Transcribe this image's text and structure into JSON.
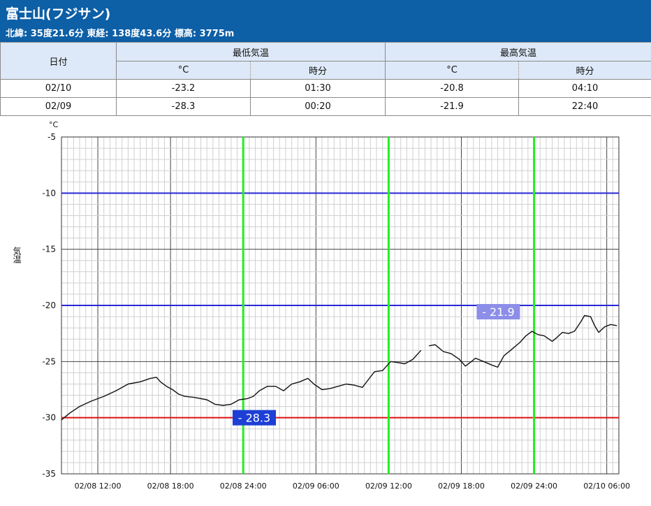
{
  "header": {
    "title": "富士山(フジサン)",
    "subtitle": "北緯: 35度21.6分 東経: 138度43.6分 標高: 3775m"
  },
  "table": {
    "date_header": "日付",
    "min_header": "最低気温",
    "max_header": "最高気温",
    "sub_headers": [
      "°C",
      "時分",
      "°C",
      "時分"
    ],
    "rows": [
      {
        "date": "02/10",
        "min_temp": "-23.2",
        "min_time": "01:30",
        "max_temp": "-20.8",
        "max_time": "04:10"
      },
      {
        "date": "02/09",
        "min_temp": "-28.3",
        "min_time": "00:20",
        "max_temp": "-21.9",
        "max_time": "22:40"
      }
    ]
  },
  "colors": {
    "header_bg": "#0d5fa6",
    "table_header_bg": "#dde9f8",
    "day_line": "#22ee22",
    "hline_blue": "#2828d6",
    "hline_red": "#e01010",
    "min_label_bg": "#1d3fd6",
    "max_label_bg": "#8c8ee8"
  },
  "chart_data": {
    "type": "line",
    "ylabel": "気温",
    "yunit": "°C",
    "ylim": [
      -35,
      -5
    ],
    "yticks": [
      "-5",
      "-10",
      "-15",
      "-20",
      "-25",
      "-30",
      "-35"
    ],
    "xlim": [
      "02/08 09:00",
      "02/10 07:00"
    ],
    "xticks": [
      "02/08 12:00",
      "02/08 18:00",
      "02/08 24:00",
      "02/09 06:00",
      "02/09 12:00",
      "02/09 18:00",
      "02/09 24:00",
      "02/10 06:00"
    ],
    "grid": true,
    "reference_lines": [
      {
        "value": -10,
        "color": "blue"
      },
      {
        "value": -20,
        "color": "blue"
      },
      {
        "value": -30,
        "color": "red"
      }
    ],
    "day_lines": [
      "02/08 24:00",
      "02/09 12:00",
      "02/09 24:00"
    ],
    "annotations": [
      {
        "text": "- 28.3",
        "time": "02/09 00:20",
        "value": -28.3,
        "kind": "min"
      },
      {
        "text": "- 21.9",
        "time": "02/09 22:40",
        "value": -21.9,
        "kind": "max"
      }
    ],
    "series": [
      {
        "points": [
          [
            "02/08 09:00",
            -30.2
          ],
          [
            "02/08 09:40",
            -29.6
          ],
          [
            "02/08 10:30",
            -29.0
          ],
          [
            "02/08 11:30",
            -28.5
          ],
          [
            "02/08 12:30",
            -28.1
          ],
          [
            "02/08 13:30",
            -27.6
          ],
          [
            "02/08 14:30",
            -27.0
          ],
          [
            "02/08 15:30",
            -26.8
          ],
          [
            "02/08 16:20",
            -26.5
          ],
          [
            "02/08 16:50",
            -26.4
          ],
          [
            "02/08 17:10",
            -26.8
          ],
          [
            "02/08 17:40",
            -27.2
          ],
          [
            "02/08 18:10",
            -27.5
          ],
          [
            "02/08 18:40",
            -27.9
          ],
          [
            "02/08 19:10",
            -28.1
          ],
          [
            "02/08 20:00",
            -28.2
          ],
          [
            "02/08 21:00",
            -28.4
          ],
          [
            "02/08 21:40",
            -28.8
          ],
          [
            "02/08 22:20",
            -28.9
          ],
          [
            "02/08 23:00",
            -28.8
          ],
          [
            "02/08 23:40",
            -28.4
          ],
          [
            "02/09 00:20",
            -28.3
          ],
          [
            "02/09 00:50",
            -28.1
          ],
          [
            "02/09 01:20",
            -27.6
          ],
          [
            "02/09 02:00",
            -27.2
          ],
          [
            "02/09 02:40",
            -27.2
          ],
          [
            "02/09 03:20",
            -27.6
          ],
          [
            "02/09 04:00",
            -27.0
          ],
          [
            "02/09 04:40",
            -26.8
          ],
          [
            "02/09 05:20",
            -26.5
          ],
          [
            "02/09 05:50",
            -27.0
          ],
          [
            "02/09 06:30",
            -27.5
          ],
          [
            "02/09 07:10",
            -27.4
          ],
          [
            "02/09 07:50",
            -27.2
          ],
          [
            "02/09 08:30",
            -27.0
          ],
          [
            "02/09 09:10",
            -27.1
          ],
          [
            "02/09 09:50",
            -27.3
          ],
          [
            "02/09 10:20",
            -26.6
          ],
          [
            "02/09 10:50",
            -25.9
          ],
          [
            "02/09 11:30",
            -25.8
          ],
          [
            "02/09 12:10",
            -25.0
          ],
          [
            "02/09 12:50",
            -25.1
          ],
          [
            "02/09 13:20",
            -25.2
          ],
          [
            "02/09 14:00",
            -24.8
          ],
          [
            "02/09 14:40",
            -24.0
          ],
          [
            "02/09 15:00",
            null
          ],
          [
            "02/09 15:20",
            -23.6
          ],
          [
            "02/09 15:50",
            -23.5
          ],
          [
            "02/09 16:30",
            -24.1
          ],
          [
            "02/09 17:10",
            -24.3
          ],
          [
            "02/09 17:50",
            -24.8
          ],
          [
            "02/09 18:20",
            -25.4
          ],
          [
            "02/09 18:50",
            -25.0
          ],
          [
            "02/09 19:10",
            -24.7
          ],
          [
            "02/09 19:50",
            -25.0
          ],
          [
            "02/09 20:30",
            -25.3
          ],
          [
            "02/09 21:00",
            -25.5
          ],
          [
            "02/09 21:30",
            -24.5
          ],
          [
            "02/09 22:10",
            -23.9
          ],
          [
            "02/09 22:50",
            -23.3
          ],
          [
            "02/09 23:20",
            -22.7
          ],
          [
            "02/09 23:50",
            -22.3
          ],
          [
            "02/10 00:20",
            -22.6
          ],
          [
            "02/10 00:50",
            -22.7
          ],
          [
            "02/10 01:30",
            -23.2
          ],
          [
            "02/10 01:50",
            -22.9
          ],
          [
            "02/10 02:20",
            -22.4
          ],
          [
            "02/10 02:50",
            -22.5
          ],
          [
            "02/10 03:20",
            -22.3
          ],
          [
            "02/10 03:50",
            -21.5
          ],
          [
            "02/10 04:10",
            -20.9
          ],
          [
            "02/10 04:40",
            -21.0
          ],
          [
            "02/10 05:00",
            -21.8
          ],
          [
            "02/10 05:20",
            -22.4
          ],
          [
            "02/10 05:50",
            -21.9
          ],
          [
            "02/10 06:20",
            -21.7
          ],
          [
            "02/10 06:50",
            -21.8
          ]
        ]
      }
    ]
  }
}
